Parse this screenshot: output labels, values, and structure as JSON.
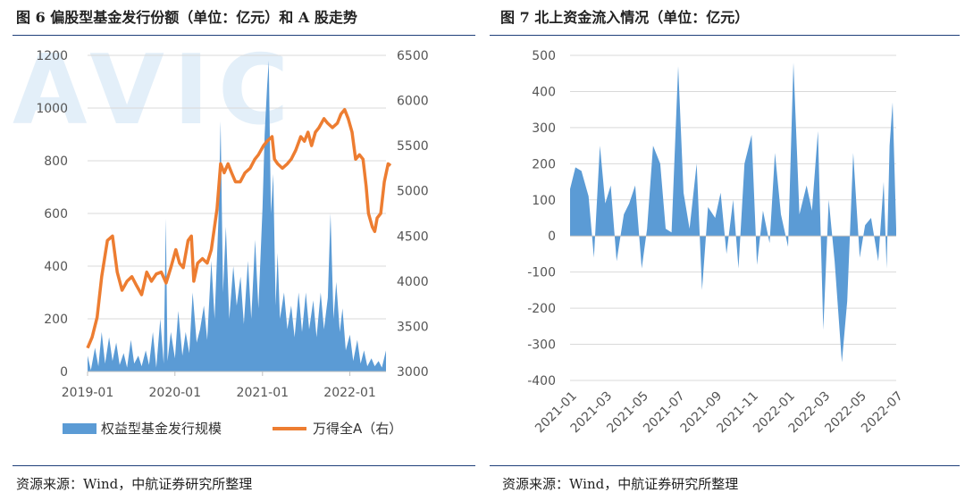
{
  "left": {
    "title": "图 6  偏股型基金发行份额（单位：亿元）和 A 股走势",
    "source": "资源来源：Wind，中航证券研究所整理",
    "watermark": "AVIC"
  },
  "right": {
    "title": "图 7  北上资金流入情况（单位：亿元）",
    "source": "资源来源：Wind，中航证券研究所整理"
  },
  "colors": {
    "area": "#5b9bd5",
    "line": "#ed7d31",
    "rule": "#1f3f7a",
    "watermark": "#e3eff9"
  },
  "chart_data": [
    {
      "type": "area",
      "title": "",
      "x_tick_labels": [
        "2019-01",
        "2020-01",
        "2021-01",
        "2022-01"
      ],
      "x_tick_dates": [
        "2019-01-01",
        "2020-01-01",
        "2021-01-01",
        "2022-01-01"
      ],
      "x_range": [
        "2019-01-01",
        "2022-06-01"
      ],
      "y_left": {
        "ticks": [
          "0",
          "200",
          "400",
          "600",
          "800",
          "1000",
          "1200"
        ],
        "range": [
          0,
          1200
        ]
      },
      "y_right": {
        "ticks": [
          "3000",
          "3500",
          "4000",
          "4500",
          "5000",
          "5500",
          "6000",
          "6500"
        ],
        "range": [
          3000,
          6500
        ]
      },
      "grid": "horizontal",
      "legend_position": "bottom",
      "series": [
        {
          "name": "权益型基金发行规模",
          "type": "area",
          "axis": "left",
          "points": [
            [
              "2019-01-01",
              60
            ],
            [
              "2019-01-15",
              5
            ],
            [
              "2019-02-01",
              90
            ],
            [
              "2019-02-15",
              20
            ],
            [
              "2019-03-01",
              150
            ],
            [
              "2019-03-15",
              30
            ],
            [
              "2019-04-01",
              130
            ],
            [
              "2019-04-15",
              40
            ],
            [
              "2019-05-01",
              110
            ],
            [
              "2019-05-15",
              25
            ],
            [
              "2019-06-01",
              70
            ],
            [
              "2019-06-15",
              15
            ],
            [
              "2019-07-01",
              120
            ],
            [
              "2019-07-15",
              30
            ],
            [
              "2019-08-01",
              60
            ],
            [
              "2019-08-15",
              20
            ],
            [
              "2019-09-01",
              80
            ],
            [
              "2019-09-15",
              25
            ],
            [
              "2019-10-01",
              150
            ],
            [
              "2019-10-15",
              15
            ],
            [
              "2019-11-01",
              200
            ],
            [
              "2019-11-15",
              30
            ],
            [
              "2019-11-24",
              580
            ],
            [
              "2019-12-01",
              40
            ],
            [
              "2019-12-15",
              150
            ],
            [
              "2020-01-01",
              50
            ],
            [
              "2020-01-15",
              230
            ],
            [
              "2020-02-01",
              60
            ],
            [
              "2020-02-15",
              150
            ],
            [
              "2020-03-01",
              70
            ],
            [
              "2020-03-15",
              300
            ],
            [
              "2020-04-01",
              110
            ],
            [
              "2020-04-15",
              160
            ],
            [
              "2020-05-01",
              250
            ],
            [
              "2020-05-15",
              120
            ],
            [
              "2020-06-01",
              420
            ],
            [
              "2020-06-15",
              200
            ],
            [
              "2020-07-01",
              580
            ],
            [
              "2020-07-10",
              950
            ],
            [
              "2020-07-20",
              300
            ],
            [
              "2020-08-01",
              550
            ],
            [
              "2020-08-15",
              200
            ],
            [
              "2020-09-01",
              400
            ],
            [
              "2020-09-15",
              250
            ],
            [
              "2020-10-01",
              360
            ],
            [
              "2020-10-15",
              180
            ],
            [
              "2020-11-01",
              420
            ],
            [
              "2020-11-15",
              200
            ],
            [
              "2020-12-01",
              500
            ],
            [
              "2020-12-15",
              240
            ],
            [
              "2021-01-01",
              620
            ],
            [
              "2021-01-10",
              900
            ],
            [
              "2021-01-20",
              1080
            ],
            [
              "2021-01-27",
              1180
            ],
            [
              "2021-02-05",
              600
            ],
            [
              "2021-02-15",
              750
            ],
            [
              "2021-02-25",
              250
            ],
            [
              "2021-03-05",
              450
            ],
            [
              "2021-03-15",
              200
            ],
            [
              "2021-04-01",
              300
            ],
            [
              "2021-04-15",
              160
            ],
            [
              "2021-05-01",
              250
            ],
            [
              "2021-05-15",
              130
            ],
            [
              "2021-06-01",
              300
            ],
            [
              "2021-06-15",
              150
            ],
            [
              "2021-07-01",
              300
            ],
            [
              "2021-07-15",
              160
            ],
            [
              "2021-08-01",
              270
            ],
            [
              "2021-08-15",
              130
            ],
            [
              "2021-09-01",
              300
            ],
            [
              "2021-09-15",
              160
            ],
            [
              "2021-10-01",
              280
            ],
            [
              "2021-10-12",
              600
            ],
            [
              "2021-10-25",
              200
            ],
            [
              "2021-11-05",
              340
            ],
            [
              "2021-11-20",
              150
            ],
            [
              "2021-12-01",
              240
            ],
            [
              "2021-12-15",
              80
            ],
            [
              "2022-01-01",
              140
            ],
            [
              "2022-01-15",
              40
            ],
            [
              "2022-02-01",
              120
            ],
            [
              "2022-02-15",
              30
            ],
            [
              "2022-03-01",
              80
            ],
            [
              "2022-03-15",
              20
            ],
            [
              "2022-04-01",
              50
            ],
            [
              "2022-04-15",
              20
            ],
            [
              "2022-05-01",
              40
            ],
            [
              "2022-05-15",
              15
            ],
            [
              "2022-06-01",
              80
            ]
          ]
        },
        {
          "name": "万得全A（右）",
          "type": "line",
          "axis": "right",
          "points": [
            [
              "2019-01-01",
              3260
            ],
            [
              "2019-01-20",
              3380
            ],
            [
              "2019-02-10",
              3600
            ],
            [
              "2019-03-01",
              4050
            ],
            [
              "2019-03-25",
              4450
            ],
            [
              "2019-04-15",
              4500
            ],
            [
              "2019-05-05",
              4100
            ],
            [
              "2019-05-25",
              3900
            ],
            [
              "2019-06-15",
              4000
            ],
            [
              "2019-07-05",
              4050
            ],
            [
              "2019-07-25",
              3950
            ],
            [
              "2019-08-15",
              3850
            ],
            [
              "2019-09-05",
              4100
            ],
            [
              "2019-09-25",
              4000
            ],
            [
              "2019-10-15",
              4080
            ],
            [
              "2019-11-05",
              4100
            ],
            [
              "2019-11-25",
              3980
            ],
            [
              "2019-12-15",
              4150
            ],
            [
              "2020-01-05",
              4350
            ],
            [
              "2020-01-20",
              4200
            ],
            [
              "2020-02-05",
              4150
            ],
            [
              "2020-02-25",
              4450
            ],
            [
              "2020-03-10",
              4500
            ],
            [
              "2020-03-20",
              4000
            ],
            [
              "2020-04-05",
              4200
            ],
            [
              "2020-04-25",
              4250
            ],
            [
              "2020-05-15",
              4200
            ],
            [
              "2020-06-01",
              4350
            ],
            [
              "2020-06-25",
              4800
            ],
            [
              "2020-07-10",
              5300
            ],
            [
              "2020-07-25",
              5200
            ],
            [
              "2020-08-10",
              5300
            ],
            [
              "2020-08-25",
              5200
            ],
            [
              "2020-09-10",
              5100
            ],
            [
              "2020-09-30",
              5100
            ],
            [
              "2020-10-20",
              5200
            ],
            [
              "2020-11-10",
              5250
            ],
            [
              "2020-11-30",
              5350
            ],
            [
              "2020-12-15",
              5400
            ],
            [
              "2021-01-05",
              5500
            ],
            [
              "2021-01-20",
              5550
            ],
            [
              "2021-02-10",
              5600
            ],
            [
              "2021-02-20",
              5350
            ],
            [
              "2021-03-05",
              5300
            ],
            [
              "2021-03-25",
              5250
            ],
            [
              "2021-04-15",
              5300
            ],
            [
              "2021-05-01",
              5350
            ],
            [
              "2021-05-20",
              5450
            ],
            [
              "2021-06-10",
              5600
            ],
            [
              "2021-06-25",
              5550
            ],
            [
              "2021-07-10",
              5650
            ],
            [
              "2021-07-25",
              5500
            ],
            [
              "2021-08-10",
              5650
            ],
            [
              "2021-08-25",
              5700
            ],
            [
              "2021-09-15",
              5800
            ],
            [
              "2021-09-30",
              5750
            ],
            [
              "2021-10-20",
              5700
            ],
            [
              "2021-11-10",
              5750
            ],
            [
              "2021-11-25",
              5850
            ],
            [
              "2021-12-10",
              5900
            ],
            [
              "2021-12-25",
              5800
            ],
            [
              "2022-01-10",
              5650
            ],
            [
              "2022-01-25",
              5350
            ],
            [
              "2022-02-10",
              5400
            ],
            [
              "2022-02-25",
              5350
            ],
            [
              "2022-03-10",
              5050
            ],
            [
              "2022-03-20",
              4750
            ],
            [
              "2022-04-05",
              4600
            ],
            [
              "2022-04-15",
              4550
            ],
            [
              "2022-04-25",
              4700
            ],
            [
              "2022-05-10",
              4750
            ],
            [
              "2022-05-25",
              5100
            ],
            [
              "2022-06-10",
              5300
            ],
            [
              "2022-06-20",
              5280
            ]
          ]
        }
      ]
    },
    {
      "type": "area",
      "title": "",
      "x_tick_labels": [
        "2021-01",
        "2021-03",
        "2021-05",
        "2021-07",
        "2021-09",
        "2021-11",
        "2022-01",
        "2022-03",
        "2022-05",
        "2022-07"
      ],
      "x_tick_dates": [
        "2021-01-01",
        "2021-03-01",
        "2021-05-01",
        "2021-07-01",
        "2021-09-01",
        "2021-11-01",
        "2022-01-01",
        "2022-03-01",
        "2022-05-01",
        "2022-07-01"
      ],
      "x_range": [
        "2021-01-01",
        "2022-07-01"
      ],
      "y_axis": {
        "ticks": [
          "500",
          "400",
          "300",
          "200",
          "100",
          "0",
          "-100",
          "-200",
          "-300",
          "-400"
        ],
        "range": [
          -400,
          500
        ]
      },
      "grid": "horizontal",
      "series": [
        {
          "name": "",
          "type": "area",
          "points": [
            [
              "2021-01-01",
              130
            ],
            [
              "2021-01-10",
              190
            ],
            [
              "2021-01-20",
              180
            ],
            [
              "2021-02-01",
              110
            ],
            [
              "2021-02-10",
              -60
            ],
            [
              "2021-02-20",
              250
            ],
            [
              "2021-03-01",
              90
            ],
            [
              "2021-03-10",
              140
            ],
            [
              "2021-03-20",
              -70
            ],
            [
              "2021-04-01",
              60
            ],
            [
              "2021-04-10",
              90
            ],
            [
              "2021-04-20",
              140
            ],
            [
              "2021-05-01",
              -90
            ],
            [
              "2021-05-10",
              20
            ],
            [
              "2021-05-20",
              250
            ],
            [
              "2021-06-01",
              200
            ],
            [
              "2021-06-10",
              20
            ],
            [
              "2021-06-20",
              10
            ],
            [
              "2021-07-01",
              470
            ],
            [
              "2021-07-10",
              120
            ],
            [
              "2021-07-20",
              20
            ],
            [
              "2021-08-01",
              200
            ],
            [
              "2021-08-10",
              -150
            ],
            [
              "2021-08-20",
              80
            ],
            [
              "2021-09-01",
              50
            ],
            [
              "2021-09-10",
              120
            ],
            [
              "2021-09-20",
              -50
            ],
            [
              "2021-10-01",
              100
            ],
            [
              "2021-10-10",
              -90
            ],
            [
              "2021-10-20",
              200
            ],
            [
              "2021-11-01",
              280
            ],
            [
              "2021-11-10",
              -80
            ],
            [
              "2021-11-20",
              70
            ],
            [
              "2021-12-01",
              -20
            ],
            [
              "2021-12-10",
              230
            ],
            [
              "2021-12-20",
              60
            ],
            [
              "2022-01-01",
              -30
            ],
            [
              "2022-01-10",
              480
            ],
            [
              "2022-01-20",
              60
            ],
            [
              "2022-02-01",
              140
            ],
            [
              "2022-02-10",
              70
            ],
            [
              "2022-02-20",
              290
            ],
            [
              "2022-03-01",
              -260
            ],
            [
              "2022-03-10",
              100
            ],
            [
              "2022-03-20",
              -70
            ],
            [
              "2022-04-01",
              -350
            ],
            [
              "2022-04-10",
              -180
            ],
            [
              "2022-04-20",
              230
            ],
            [
              "2022-05-01",
              -60
            ],
            [
              "2022-05-10",
              30
            ],
            [
              "2022-05-20",
              50
            ],
            [
              "2022-06-01",
              -70
            ],
            [
              "2022-06-10",
              150
            ],
            [
              "2022-06-15",
              -90
            ],
            [
              "2022-06-20",
              250
            ],
            [
              "2022-06-25",
              370
            ],
            [
              "2022-07-01",
              20
            ]
          ]
        }
      ]
    }
  ]
}
